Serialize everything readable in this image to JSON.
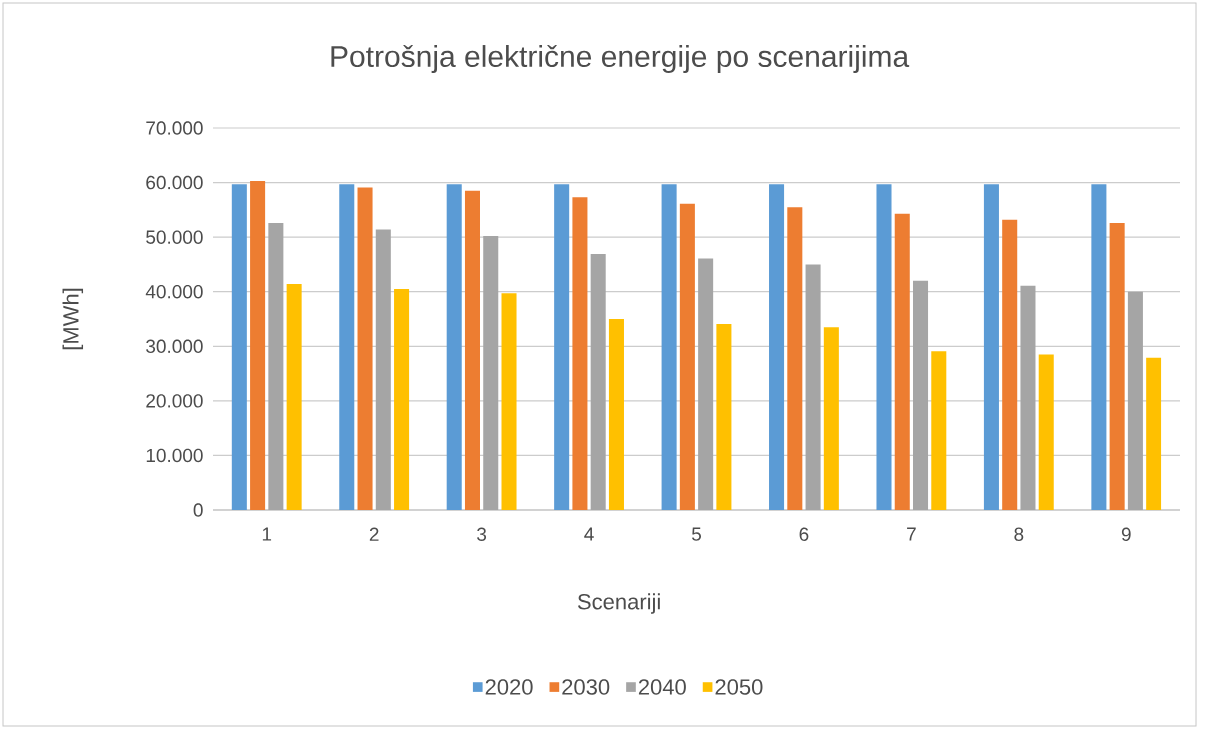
{
  "chart_data": {
    "type": "bar",
    "title": "Potrošnja električne energije po scenarijima",
    "xlabel": "Scenariji",
    "ylabel": "[MWh]",
    "categories": [
      "1",
      "2",
      "3",
      "4",
      "5",
      "6",
      "7",
      "8",
      "9"
    ],
    "series": [
      {
        "name": "2020",
        "color": "#5b9bd5",
        "values": [
          59700,
          59700,
          59700,
          59700,
          59700,
          59700,
          59700,
          59700,
          59700
        ]
      },
      {
        "name": "2030",
        "color": "#ed7d31",
        "values": [
          60300,
          59100,
          58500,
          57300,
          56100,
          55500,
          54300,
          53200,
          52600
        ]
      },
      {
        "name": "2040",
        "color": "#a5a5a5",
        "values": [
          52600,
          51400,
          50200,
          46900,
          46100,
          45000,
          42000,
          41100,
          40000
        ]
      },
      {
        "name": "2050",
        "color": "#ffc000",
        "values": [
          41400,
          40500,
          39700,
          35000,
          34100,
          33500,
          29100,
          28500,
          27900
        ]
      }
    ],
    "ylim": [
      0,
      70000
    ],
    "yticks": [
      0,
      {
        "value": 10000,
        "label": "10.000"
      },
      {
        "value": 20000,
        "label": "20.000"
      },
      {
        "value": 30000,
        "label": "30.000"
      },
      {
        "value": 40000,
        "label": "40.000"
      },
      {
        "value": 50000,
        "label": "50.000"
      },
      {
        "value": 60000,
        "label": "60.000"
      },
      {
        "value": 70000,
        "label": "70.000"
      }
    ],
    "grid": "y",
    "legend": "bottom"
  }
}
